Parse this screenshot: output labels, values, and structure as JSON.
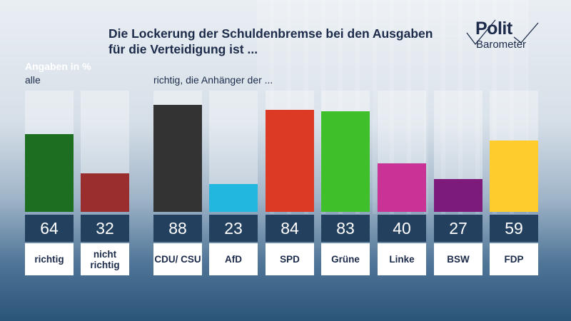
{
  "header": {
    "title": "Die Lockerung der Schuldenbremse bei den Ausgaben für die Verteidigung ist ..."
  },
  "logo": {
    "word1": "Polit",
    "word2": "Barometer"
  },
  "labels": {
    "unit": "Angaben in %",
    "group1": "alle",
    "group2": "richtig, die Anhänger der ..."
  },
  "chart_data": {
    "type": "bar",
    "title": "Die Lockerung der Schuldenbremse bei den Ausgaben für die Verteidigung ist ...",
    "ylabel": "Angaben in %",
    "ylim": [
      0,
      100
    ],
    "groups": [
      {
        "label": "alle",
        "categories": [
          "richtig",
          "nicht richtig"
        ],
        "values": [
          64,
          32
        ],
        "colors": [
          "#1e6e22",
          "#9a2e2e"
        ]
      },
      {
        "label": "richtig, die Anhänger der ...",
        "categories": [
          "CDU/ CSU",
          "AfD",
          "SPD",
          "Grüne",
          "Linke",
          "BSW",
          "FDP"
        ],
        "values": [
          88,
          23,
          84,
          83,
          40,
          27,
          59
        ],
        "colors": [
          "#333333",
          "#22b7df",
          "#dd3a25",
          "#3fbf2a",
          "#c93395",
          "#7d1b7a",
          "#ffcc2e"
        ]
      }
    ]
  }
}
